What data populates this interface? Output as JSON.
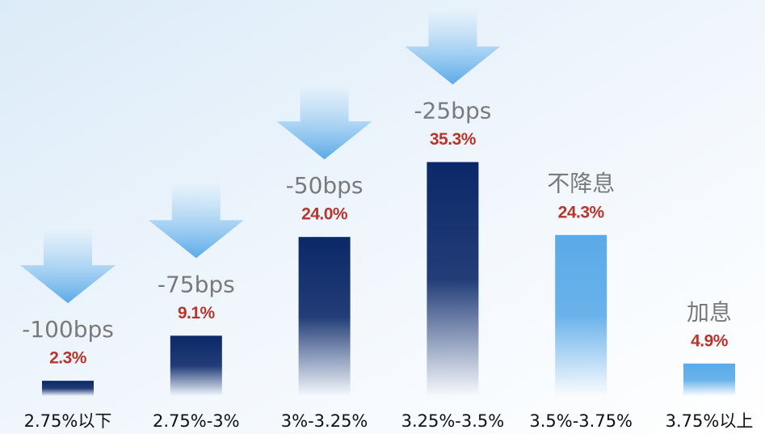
{
  "chart_data": {
    "type": "bar",
    "categories": [
      "2.75%以下",
      "2.75%-3%",
      "3%-3.25%",
      "3.25%-3.5%",
      "3.5%-3.75%",
      "3.75%以上"
    ],
    "values": [
      2.3,
      9.1,
      24.0,
      35.3,
      24.3,
      4.9
    ],
    "value_labels": [
      "2.3%",
      "9.1%",
      "24.0%",
      "35.3%",
      "24.3%",
      "4.9%"
    ],
    "annotations": [
      "-100bps",
      "-75bps",
      "-50bps",
      "-25bps",
      "不降息",
      "加息"
    ],
    "colors": [
      "#0b2868",
      "#0b2868",
      "#0b2868",
      "#0b2868",
      "#5aaae8",
      "#5aaae8"
    ]
  }
}
